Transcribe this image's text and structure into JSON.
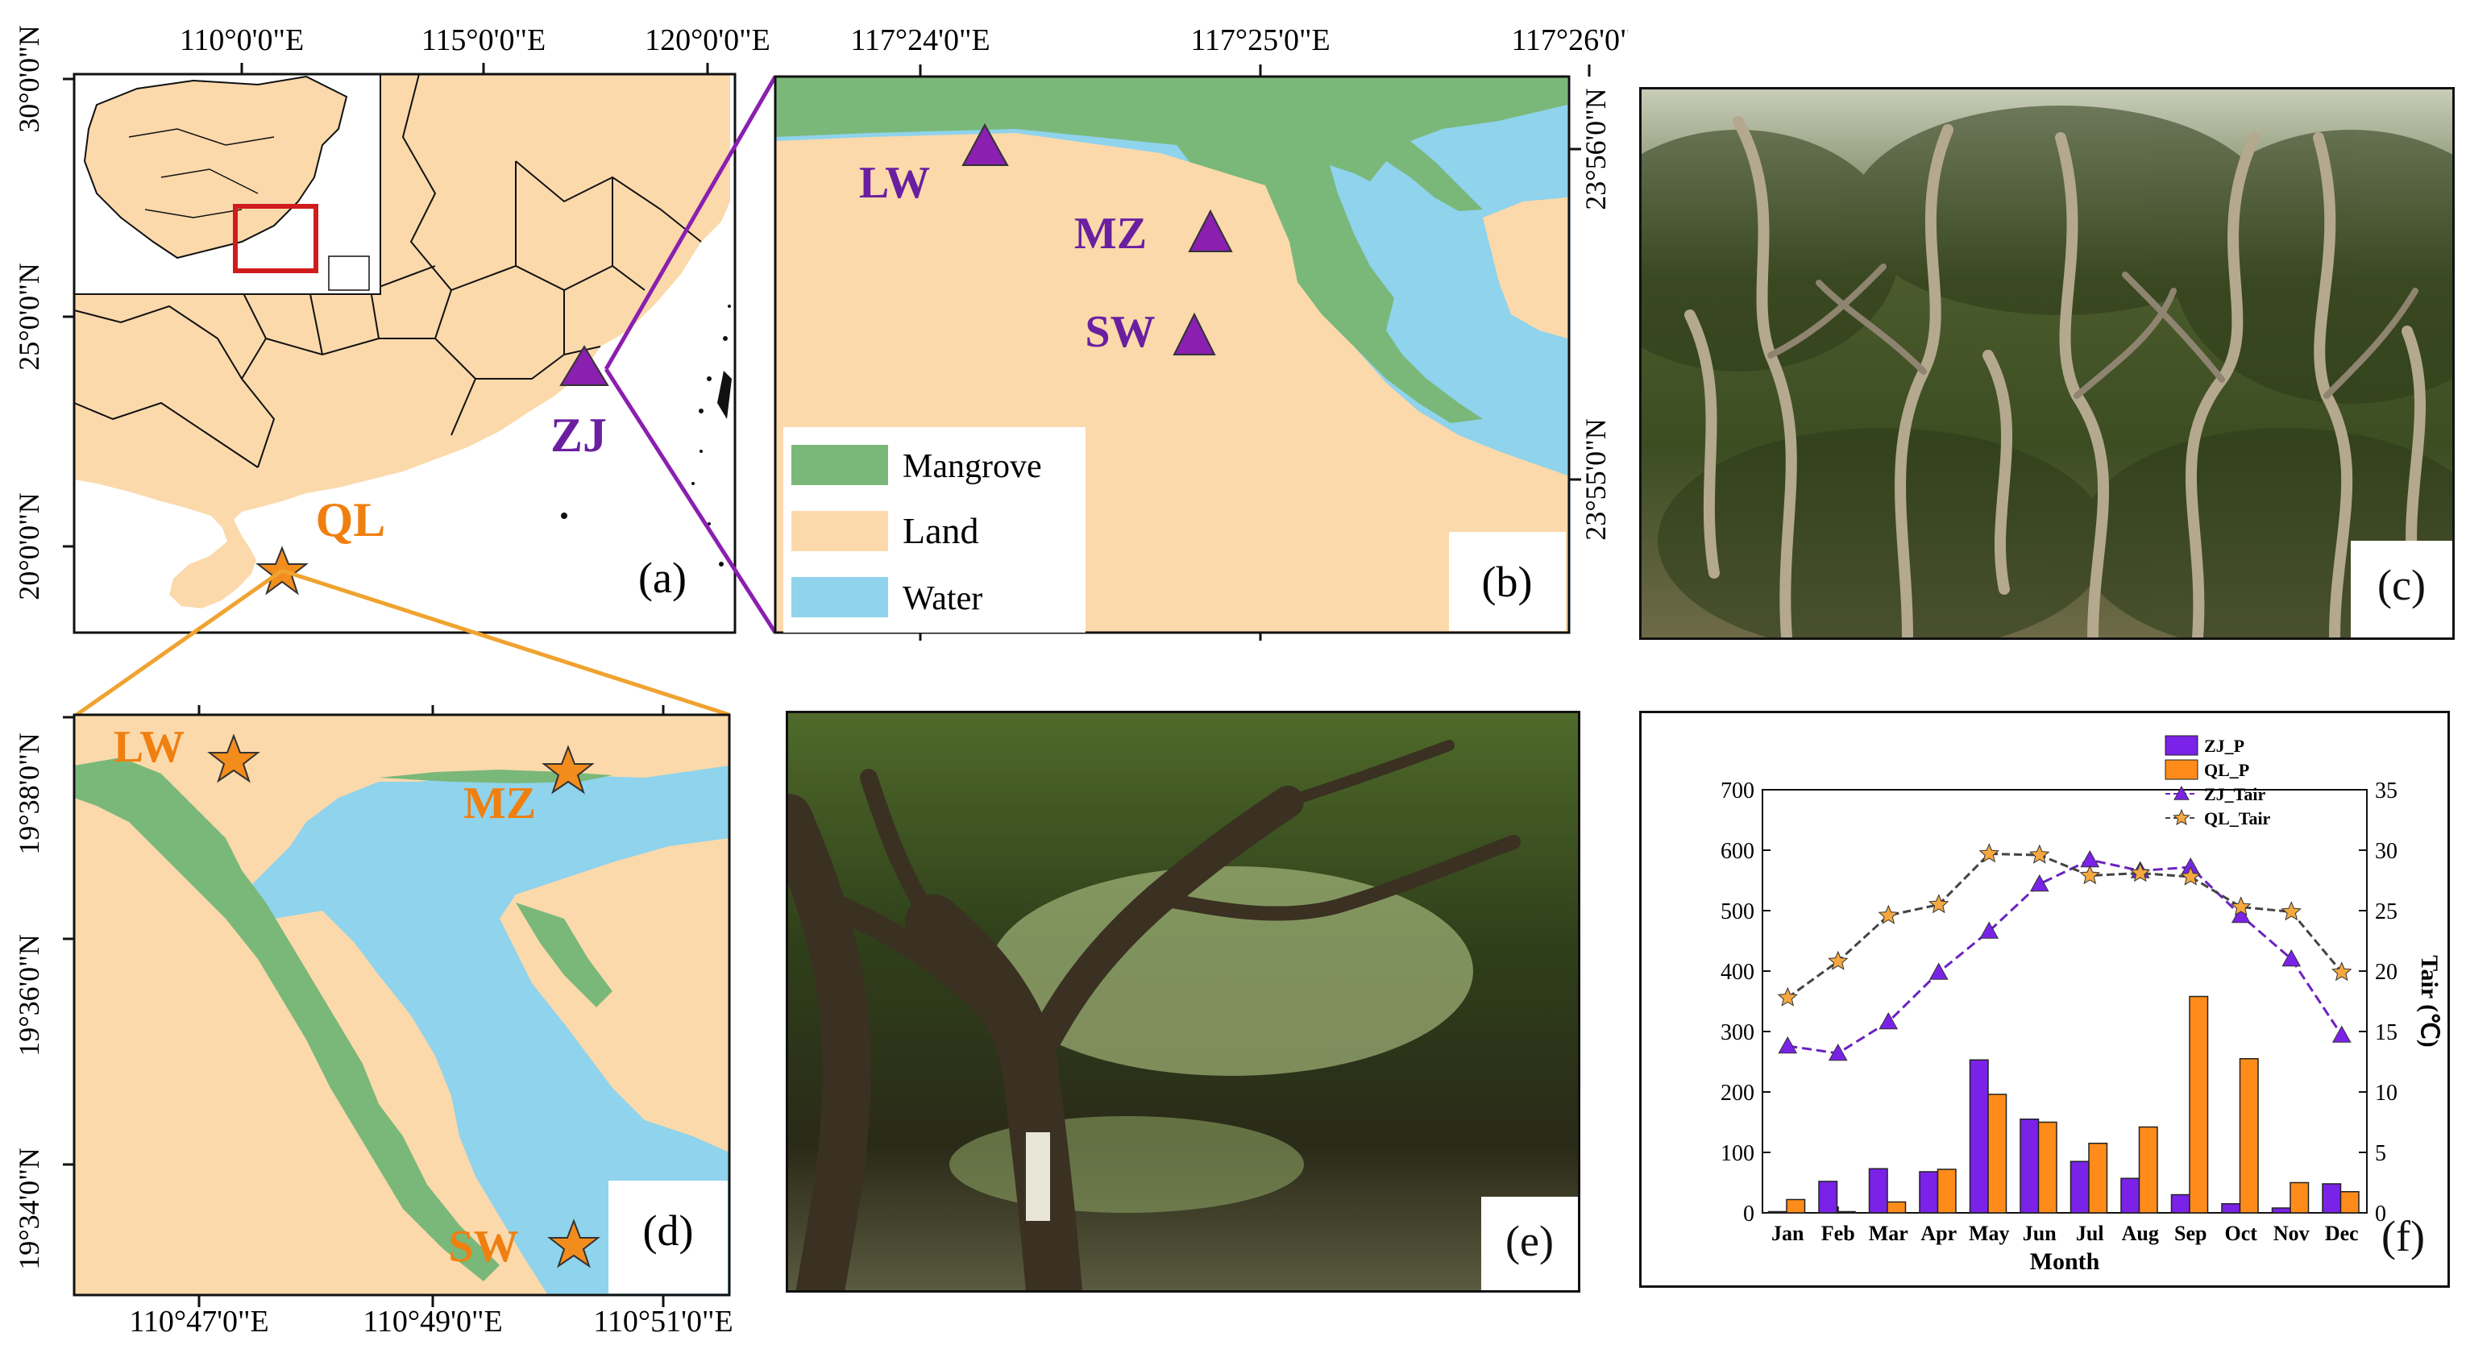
{
  "colors": {
    "land": "#fbd9ab",
    "water": "#8fd3ec",
    "mangrove": "#7ab87a",
    "sea_a": "#ffffff",
    "site_purple": "#8a1fb0",
    "site_orange": "#f28c1d",
    "label_purple": "#6a1fa0",
    "label_orange": "#f07f10",
    "inset_box": "#d01c1c",
    "connector_purple": "#8a1fb0",
    "connector_orange": "#f0a330",
    "bar_zj": "#7a22e8",
    "bar_ql": "#ff8c1a",
    "line_zj": "#6a22c0",
    "line_ql": "#444444",
    "marker_ql": "#f5a840"
  },
  "panel_a": {
    "letter": "(a)",
    "top_ticks": [
      "110°0'0\"E",
      "115°0'0\"E",
      "120°0'0\"E"
    ],
    "left_ticks": [
      "30°0'0\"N",
      "25°0'0\"N",
      "20°0'0\"N"
    ],
    "sites": [
      {
        "name": "ZJ",
        "marker": "triangle"
      },
      {
        "name": "QL",
        "marker": "star"
      }
    ]
  },
  "panel_b": {
    "letter": "(b)",
    "top_ticks": [
      "117°24'0\"E",
      "117°25'0\"E",
      "117°26'0\"E"
    ],
    "right_ticks": [
      "23°56'0\"N",
      "23°55'0\"N"
    ],
    "sites": [
      "LW",
      "MZ",
      "SW"
    ],
    "legend": [
      {
        "label": "Mangrove",
        "key": "mangrove"
      },
      {
        "label": "Land",
        "key": "land"
      },
      {
        "label": "Water",
        "key": "water"
      }
    ]
  },
  "panel_c": {
    "letter": "(c)"
  },
  "panel_d": {
    "letter": "(d)",
    "bottom_ticks": [
      "110°47'0\"E",
      "110°49'0\"E",
      "110°51'0\"E"
    ],
    "left_ticks": [
      "19°38'0\"N",
      "19°36'0\"N",
      "19°34'0\"N"
    ],
    "sites": [
      "LW",
      "MZ",
      "SW"
    ]
  },
  "panel_e": {
    "letter": "(e)"
  },
  "panel_f": {
    "letter": "(f)"
  },
  "chart_data": {
    "type": "bar",
    "categories": [
      "Jan",
      "Feb",
      "Mar",
      "Apr",
      "May",
      "Jun",
      "Jul",
      "Aug",
      "Sep",
      "Oct",
      "Nov",
      "Dec"
    ],
    "xlabel": "Month",
    "ylabel": "",
    "y2label": "Tair (℃)",
    "ylim": [
      0,
      700
    ],
    "y2lim": [
      0,
      35
    ],
    "yticks": [
      0,
      100,
      200,
      300,
      400,
      500,
      600,
      700
    ],
    "y2ticks": [
      0,
      5,
      10,
      15,
      20,
      25,
      30,
      35
    ],
    "legend_position": "top-right",
    "series": [
      {
        "name": "ZJ_P",
        "type": "bar",
        "axis": "left",
        "values": [
          2,
          52,
          73,
          68,
          253,
          155,
          85,
          57,
          30,
          15,
          8,
          48
        ]
      },
      {
        "name": "QL_P",
        "type": "bar",
        "axis": "left",
        "values": [
          22,
          2,
          18,
          72,
          196,
          150,
          115,
          142,
          358,
          255,
          50,
          35
        ]
      },
      {
        "name": "ZJ_Tair",
        "type": "line",
        "axis": "right",
        "marker": "triangle",
        "values": [
          13.8,
          13.2,
          15.8,
          19.9,
          23.3,
          27.2,
          29.2,
          28.3,
          28.6,
          24.6,
          21.0,
          14.7
        ]
      },
      {
        "name": "QL_Tair",
        "type": "line",
        "axis": "right",
        "marker": "star",
        "values": [
          17.8,
          20.8,
          24.6,
          25.5,
          29.7,
          29.6,
          27.9,
          28.1,
          27.8,
          25.3,
          24.9,
          19.9
        ]
      }
    ]
  }
}
